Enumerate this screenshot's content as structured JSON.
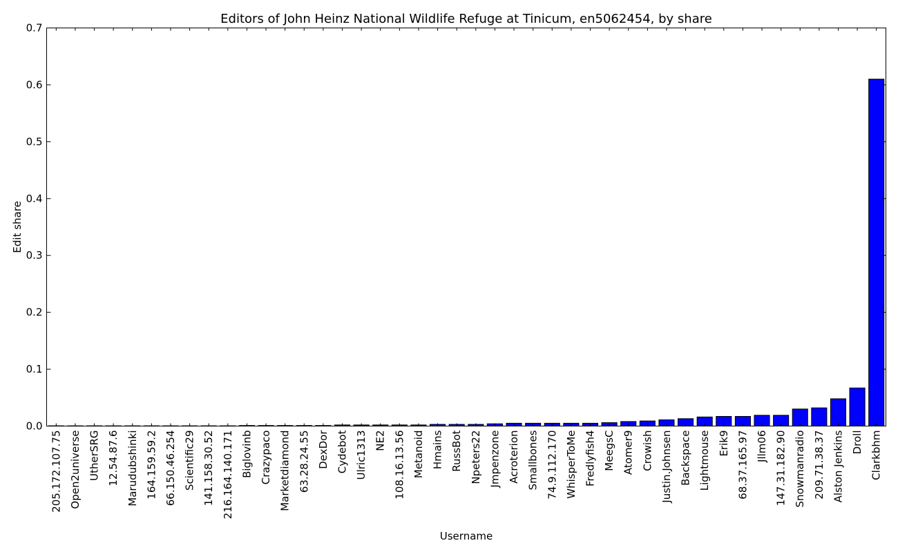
{
  "chart_data": {
    "type": "bar",
    "title": "Editors of John Heinz National Wildlife Refuge at Tinicum, en5062454, by share",
    "xlabel": "Username",
    "ylabel": "Edit share",
    "ylim": [
      0,
      0.7
    ],
    "yticks": [
      "0.0",
      "0.1",
      "0.2",
      "0.3",
      "0.4",
      "0.5",
      "0.6",
      "0.7"
    ],
    "bar_color": "#0000ff",
    "grid": false,
    "categories": [
      "205.172.107.75",
      "Open2universe",
      "UtherSRG",
      "12.54.87.6",
      "Marudubshinki",
      "164.159.59.2",
      "66.150.46.254",
      "Scientific29",
      "141.158.30.52",
      "216.164.140.171",
      "Biglovinb",
      "Crazypaco",
      "Marketdiamond",
      "63.28.24.55",
      "DexDor",
      "Cydebot",
      "Ulric1313",
      "NE2",
      "108.16.13.56",
      "Metanoid",
      "Hmains",
      "RussBot",
      "Npeters22",
      "Jmpenzone",
      "Acroterion",
      "Smallbones",
      "74.9.112.170",
      "WhisperToMe",
      "Fredlyfish4",
      "MeegsC",
      "Atomer9",
      "Crowish",
      "Justin.Johnsen",
      "Backspace",
      "Lightmouse",
      "Erik9",
      "68.37.165.97",
      "Jllm06",
      "147.31.182.90",
      "Snowmanradio",
      "209.71.38.37",
      "Alston Jenkins",
      "Droll",
      "Clarkbhm"
    ],
    "values": [
      0.0005,
      0.0005,
      0.0005,
      0.0005,
      0.0005,
      0.0005,
      0.0005,
      0.0005,
      0.0005,
      0.0005,
      0.001,
      0.001,
      0.001,
      0.001,
      0.001,
      0.002,
      0.002,
      0.002,
      0.002,
      0.002,
      0.003,
      0.003,
      0.003,
      0.004,
      0.005,
      0.005,
      0.005,
      0.005,
      0.005,
      0.006,
      0.008,
      0.009,
      0.011,
      0.013,
      0.016,
      0.017,
      0.017,
      0.019,
      0.019,
      0.03,
      0.032,
      0.048,
      0.067,
      0.61
    ]
  }
}
